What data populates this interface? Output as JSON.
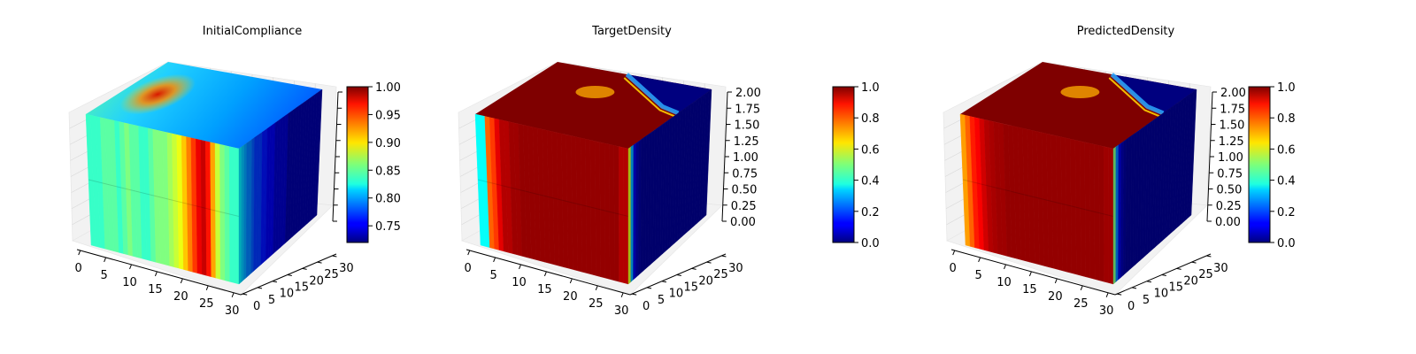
{
  "chart_data": [
    {
      "type": "heatmap",
      "title": "InitialCompliance",
      "x_ticks": [
        "0",
        "5",
        "10",
        "15",
        "20",
        "25",
        "30"
      ],
      "y_ticks": [
        "0",
        "5",
        "10",
        "15",
        "20",
        "25",
        "30"
      ],
      "z_ticks": [],
      "colorbar": {
        "range": [
          0.72,
          1.0
        ],
        "ticks": [
          "0.75",
          "0.80",
          "0.85",
          "0.90",
          "0.95",
          "1.00"
        ],
        "colormap": "jet"
      },
      "faces": {
        "top_description_values": {
          "hotspot_back_left": 0.97,
          "top_front": 0.84,
          "top_back_right": 0.76
        },
        "front_column_values": [
          0.84,
          0.84,
          0.84,
          0.85,
          0.85,
          0.85,
          0.84,
          0.85,
          0.86,
          0.85,
          0.85,
          0.84,
          0.84,
          0.85,
          0.86,
          0.86,
          0.86,
          0.87,
          0.88,
          0.89,
          0.91,
          0.93,
          0.95,
          0.97,
          0.98,
          0.96,
          0.92,
          0.88,
          0.86,
          0.85,
          0.84,
          0.84
        ],
        "right_column_values": [
          0.82,
          0.81,
          0.8,
          0.79,
          0.79,
          0.78,
          0.77,
          0.77,
          0.77,
          0.76,
          0.76,
          0.75,
          0.75,
          0.75,
          0.74,
          0.74,
          0.74,
          0.74,
          0.74,
          0.73,
          0.73,
          0.73,
          0.73,
          0.73,
          0.73,
          0.73,
          0.73,
          0.73,
          0.73,
          0.73,
          0.73,
          0.73
        ]
      }
    },
    {
      "type": "heatmap",
      "title": "TargetDensity",
      "x_ticks": [
        "0",
        "5",
        "10",
        "15",
        "20",
        "25",
        "30"
      ],
      "y_ticks": [
        "0",
        "5",
        "10",
        "15",
        "20",
        "25",
        "30"
      ],
      "z_ticks": [
        "0.00",
        "0.25",
        "0.50",
        "0.75",
        "1.00",
        "1.25",
        "1.50",
        "1.75",
        "2.00"
      ],
      "colorbar": {
        "range": [
          0.0,
          1.0
        ],
        "ticks": [
          "0.0",
          "0.2",
          "0.4",
          "0.6",
          "0.8",
          "1.0"
        ],
        "colormap": "jet"
      },
      "faces": {
        "front_column_values": [
          0.38,
          0.38,
          0.78,
          0.82,
          0.9,
          0.95,
          0.95,
          0.97,
          0.97,
          0.98,
          0.98,
          0.98,
          0.98,
          0.98,
          0.98,
          0.98,
          0.98,
          0.98,
          0.98,
          0.98,
          0.98,
          0.98,
          0.98,
          0.98,
          0.98,
          0.98,
          0.98,
          0.98,
          0.98,
          0.98,
          0.95,
          0.95
        ],
        "right_column_values": [
          0.6,
          0.3,
          0.1,
          0.05,
          0.03,
          0.02,
          0.02,
          0.02,
          0.02,
          0.02,
          0.02,
          0.02,
          0.02,
          0.02,
          0.02,
          0.02,
          0.02,
          0.02,
          0.02,
          0.02,
          0.02,
          0.02,
          0.02,
          0.02,
          0.02,
          0.02,
          0.02,
          0.02,
          0.02,
          0.02,
          0.02,
          0.02
        ]
      }
    },
    {
      "type": "heatmap",
      "title": "PredictedDensity",
      "x_ticks": [
        "0",
        "5",
        "10",
        "15",
        "20",
        "25",
        "30"
      ],
      "y_ticks": [
        "0",
        "5",
        "10",
        "15",
        "20",
        "25",
        "30"
      ],
      "z_ticks": [
        "0.00",
        "0.25",
        "0.50",
        "0.75",
        "1.00",
        "1.25",
        "1.50",
        "1.75",
        "2.00"
      ],
      "colorbar": {
        "range": [
          0.0,
          1.0
        ],
        "ticks": [
          "0.0",
          "0.2",
          "0.4",
          "0.6",
          "0.8",
          "1.0"
        ],
        "colormap": "jet"
      },
      "faces": {
        "front_column_values": [
          0.72,
          0.78,
          0.85,
          0.88,
          0.92,
          0.95,
          0.96,
          0.97,
          0.97,
          0.98,
          0.98,
          0.98,
          0.98,
          0.98,
          0.98,
          0.98,
          0.98,
          0.98,
          0.98,
          0.98,
          0.98,
          0.98,
          0.98,
          0.98,
          0.98,
          0.98,
          0.98,
          0.98,
          0.98,
          0.98,
          0.97,
          0.97
        ],
        "right_column_values": [
          0.5,
          0.25,
          0.1,
          0.05,
          0.03,
          0.02,
          0.02,
          0.02,
          0.02,
          0.02,
          0.02,
          0.02,
          0.02,
          0.02,
          0.02,
          0.02,
          0.02,
          0.02,
          0.02,
          0.02,
          0.02,
          0.02,
          0.02,
          0.02,
          0.02,
          0.02,
          0.02,
          0.02,
          0.02,
          0.02,
          0.02,
          0.02
        ]
      }
    }
  ]
}
